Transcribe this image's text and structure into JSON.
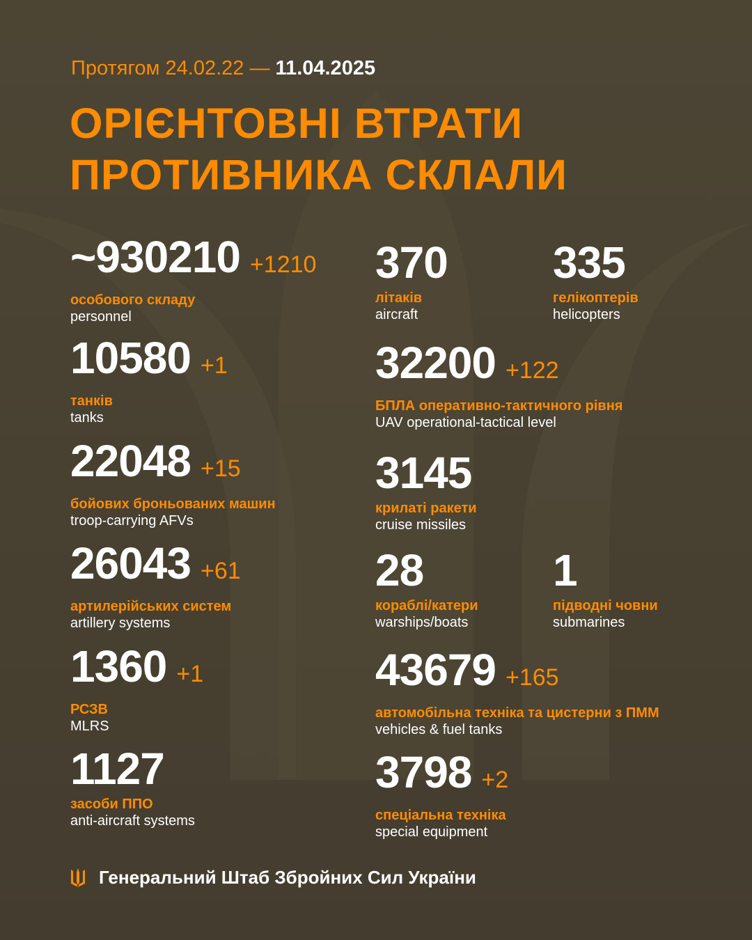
{
  "header": {
    "period_prefix": "Протягом 24.02.22 —",
    "period_end": "11.04.2025",
    "title_line1": "ОРІЄНТОВНІ ВТРАТИ",
    "title_line2": "ПРОТИВНИКА СКЛАЛИ"
  },
  "colors": {
    "accent": "#ff8c00",
    "background": "#4a4333",
    "text": "#ffffff"
  },
  "left": [
    {
      "value": "~930210",
      "delta": "+1210",
      "ua": "особового складу",
      "en": "personnel"
    },
    {
      "value": "10580",
      "delta": "+1",
      "ua": "танків",
      "en": "tanks"
    },
    {
      "value": "22048",
      "delta": "+15",
      "ua": "бойових броньованих машин",
      "en": "troop-carrying AFVs"
    },
    {
      "value": "26043",
      "delta": "+61",
      "ua": "артилерійських систем",
      "en": "artillery systems"
    },
    {
      "value": "1360",
      "delta": "+1",
      "ua": "РСЗВ",
      "en": "MLRS"
    },
    {
      "value": "1127",
      "delta": "",
      "ua": "засоби ППО",
      "en": "anti-aircraft systems"
    }
  ],
  "right": [
    {
      "value": "370",
      "delta": "",
      "ua": "літаків",
      "en": "aircraft"
    },
    {
      "value": "335",
      "delta": "",
      "ua": "гелікоптерів",
      "en": "helicopters"
    },
    {
      "value": "32200",
      "delta": "+122",
      "ua": "БПЛА оперативно-тактичного рівня",
      "en": "UAV operational-tactical level"
    },
    {
      "value": "3145",
      "delta": "",
      "ua": "крилаті ракети",
      "en": "cruise missiles"
    },
    {
      "value": "28",
      "delta": "",
      "ua": "кораблі/катери",
      "en": "warships/boats"
    },
    {
      "value": "1",
      "delta": "",
      "ua": "підводні човни",
      "en": "submarines"
    },
    {
      "value": "43679",
      "delta": "+165",
      "ua": "автомобільна техніка та цистерни з ПММ",
      "en": "vehicles & fuel tanks"
    },
    {
      "value": "3798",
      "delta": "+2",
      "ua": "спеціальна техніка",
      "en": "special equipment"
    }
  ],
  "footer": {
    "org": "Генеральний Штаб Збройних Сил України",
    "icon": "trident-icon"
  }
}
